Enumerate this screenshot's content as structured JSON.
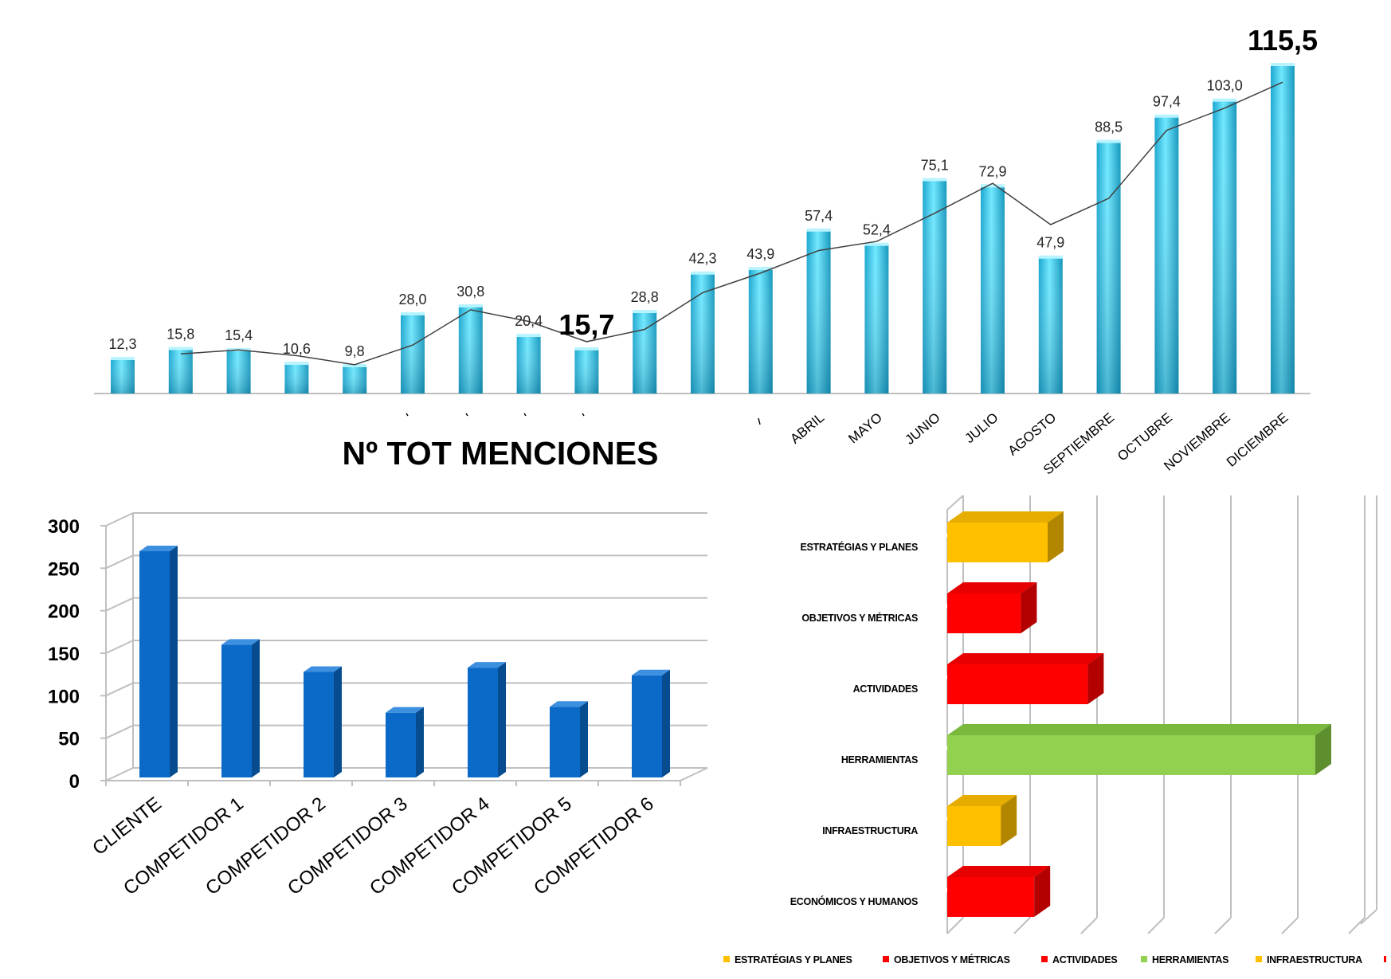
{
  "title": "Nº TOT MENCIONES",
  "colors": {
    "bar_light": "#6fe3ff",
    "bar_dark": "#1597bd",
    "blue_bar": "#0b6ac7",
    "blue_bar_dark": "#074c8f",
    "blue_bar_top": "#3d8fe0",
    "yellow": "#ffc000",
    "red": "#ff0000",
    "green": "#92d050",
    "grid": "#bfbfbf"
  },
  "chart_data": [
    {
      "type": "bar",
      "overlay": "line",
      "values": [
        12.3,
        15.8,
        15.4,
        10.6,
        9.8,
        28.0,
        30.8,
        20.4,
        15.7,
        28.8,
        42.3,
        43.9,
        57.4,
        52.4,
        75.1,
        72.9,
        47.9,
        88.5,
        97.4,
        103.0,
        115.5
      ],
      "value_labels": [
        "12,3",
        "15,8",
        "15,4",
        "10,6",
        "9,8",
        "28,0",
        "30,8",
        "20,4",
        "15,7",
        "28,8",
        "42,3",
        "43,9",
        "57,4",
        "52,4",
        "75,1",
        "72,9",
        "47,9",
        "88,5",
        "97,4",
        "103,0",
        "115,5"
      ],
      "emphasized_labels": [
        8,
        20
      ],
      "categories": [
        "",
        "",
        "",
        "",
        "",
        "",
        "",
        "",
        "",
        "",
        "",
        "",
        "ABRIL",
        "MAYO",
        "JUNIO",
        "JULIO",
        "AGOSTO",
        "SEPTIEMBRE",
        "OCTUBRE",
        "NOVIEMBRE",
        "DICIEMBRE"
      ],
      "trend_line": [
        null,
        13.9,
        15.3,
        13.3,
        10.1,
        17.0,
        29.4,
        25.3,
        18.2,
        22.5,
        35.4,
        42.3,
        50.2,
        53.4,
        63.3,
        73.8,
        59.3,
        68.5,
        92.4,
        100.2,
        109.3
      ],
      "ylim": [
        0,
        120
      ]
    },
    {
      "type": "bar",
      "style": "3d",
      "categories": [
        "CLIENTE",
        "COMPETIDOR 1",
        "COMPETIDOR 2",
        "COMPETIDOR 3",
        "COMPETIDOR 4",
        "COMPETIDOR 5",
        "COMPETIDOR 6"
      ],
      "values": [
        270,
        160,
        128,
        80,
        133,
        87,
        124
      ],
      "yticks": [
        0,
        50,
        100,
        150,
        200,
        250,
        300
      ],
      "ylim": [
        0,
        300
      ]
    },
    {
      "type": "bar",
      "orientation": "horizontal",
      "style": "3d",
      "categories": [
        "ESTRATÉGIAS Y PLANES",
        "OBJETIVOS Y MÉTRICAS",
        "ACTIVIDADES",
        "HERRAMIENTAS",
        "INFRAESTRUCTURA",
        "ECONÓMICOS Y HUMANOS"
      ],
      "category_display": [
        "ESTRATÉGIAS Y PLANES",
        "OBJETIVOS Y MÉTRICAS",
        "ACTIVIDADES",
        "HERRAMIENTAS",
        "INFRAESTRUCTURA",
        "ECONÓMICOS Y HUMANOS"
      ],
      "values": [
        1.5,
        1.1,
        2.1,
        5.5,
        0.8,
        1.3
      ],
      "xlim": [
        0,
        6.5
      ],
      "colors": [
        "#ffc000",
        "#ff0000",
        "#ff0000",
        "#92d050",
        "#ffc000",
        "#ff0000"
      ],
      "legend": [
        "ESTRATÉGIAS Y PLANES",
        "OBJETIVOS Y MÉTRICAS",
        "ACTIVIDADES",
        "HERRAMIENTAS",
        "INFRAESTRUCTURA"
      ],
      "legend_colors": [
        "#ffc000",
        "#ff0000",
        "#ff0000",
        "#92d050",
        "#ffc000"
      ],
      "legend_position": "bottom"
    }
  ]
}
